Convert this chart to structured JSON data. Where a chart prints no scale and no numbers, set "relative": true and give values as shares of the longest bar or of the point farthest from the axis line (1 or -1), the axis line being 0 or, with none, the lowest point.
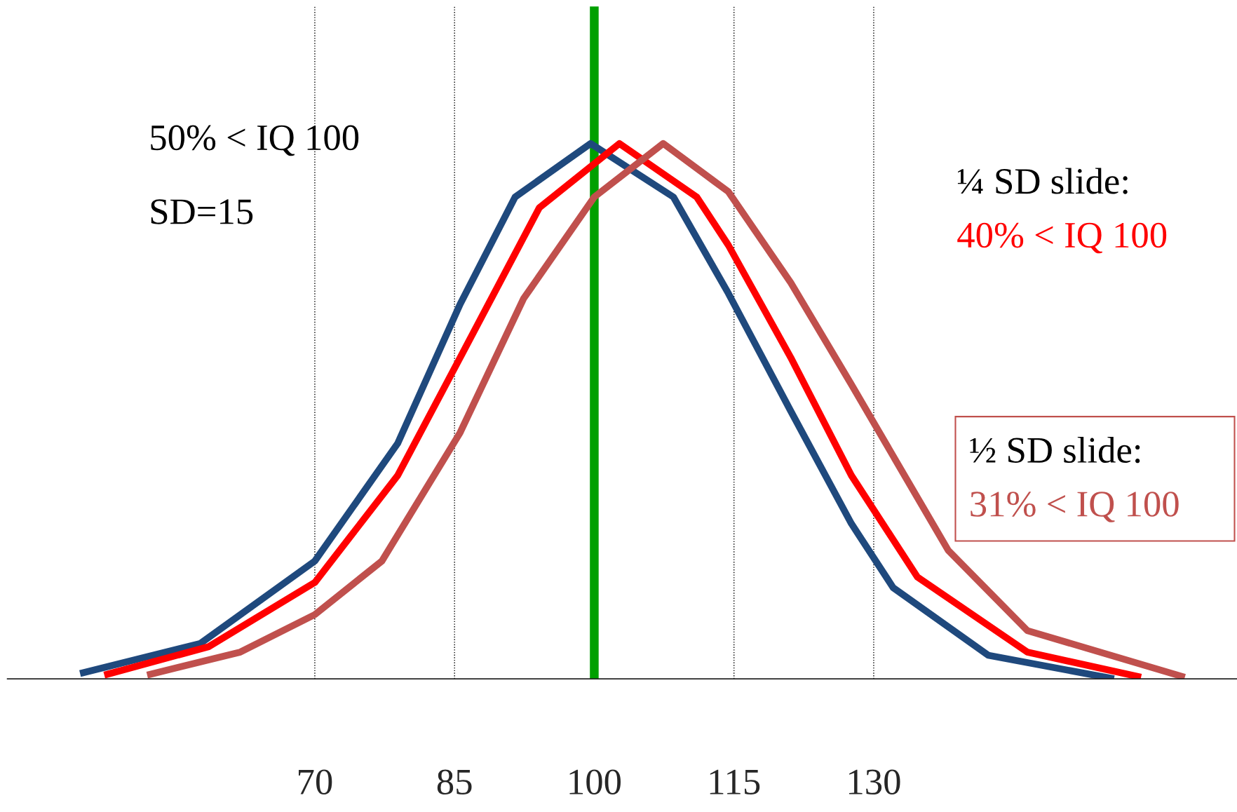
{
  "chart_data": {
    "type": "line",
    "relative": true,
    "xlim": [
      37,
      169
    ],
    "xticks": [
      70,
      85,
      100,
      115,
      130
    ],
    "grid": false,
    "marker": "none",
    "line_style": "solid",
    "series": [
      {
        "color": "#1f497d",
        "x": [
          44.8,
          57.7,
          70,
          78.9,
          85.6,
          91.5,
          99.6,
          108.5,
          114.4,
          121.1,
          127.6,
          132.1,
          142.3,
          155.8
        ],
        "values": [
          0.01,
          0.066,
          0.22,
          0.44,
          0.7,
          0.9,
          1.0,
          0.9,
          0.72,
          0.5,
          0.29,
          0.17,
          0.044,
          0
        ]
      },
      {
        "color": "#ff0000",
        "x": [
          47.4,
          58.6,
          70,
          78.9,
          85.6,
          94.1,
          102.7,
          111,
          114.4,
          121.1,
          127.6,
          134.7,
          146.5,
          158.7
        ],
        "values": [
          0.007,
          0.06,
          0.18,
          0.38,
          0.6,
          0.88,
          1.0,
          0.9,
          0.81,
          0.6,
          0.38,
          0.19,
          0.05,
          0.003
        ]
      },
      {
        "color": "#c0504d",
        "x": [
          52,
          62,
          70,
          77.2,
          85.6,
          92.4,
          100,
          107.4,
          114.4,
          121.1,
          127.6,
          138,
          146.5,
          163.4
        ],
        "values": [
          0.007,
          0.05,
          0.12,
          0.22,
          0.46,
          0.71,
          0.9,
          1.0,
          0.91,
          0.74,
          0.55,
          0.24,
          0.09,
          0.003
        ]
      }
    ],
    "ref_lines": [
      {
        "axis": "x",
        "value": 100,
        "color": "#00a000",
        "line_style": "solid"
      },
      {
        "axis": "x",
        "value": 70,
        "color": "#000000",
        "line_style": "dotted"
      },
      {
        "axis": "x",
        "value": 85,
        "color": "#000000",
        "line_style": "dotted"
      },
      {
        "axis": "x",
        "value": 115,
        "color": "#000000",
        "line_style": "dotted"
      },
      {
        "axis": "x",
        "value": 130,
        "color": "#000000",
        "line_style": "dotted"
      }
    ],
    "annotations": [
      "50% < IQ 100",
      "SD=15",
      "¼ SD slide:",
      "40% < IQ 100",
      "½ SD slide:",
      "31% < IQ 100"
    ]
  }
}
